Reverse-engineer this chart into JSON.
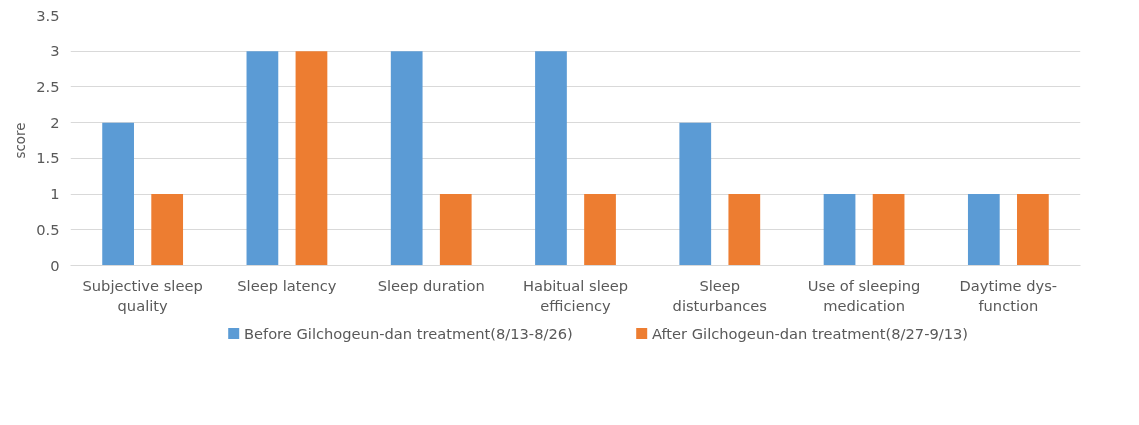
{
  "chart_data": {
    "type": "bar",
    "ylabel": "score",
    "categories": [
      "Subjective sleep\nquality",
      "Sleep latency",
      "Sleep duration",
      "Habitual sleep\nefficiency",
      "Sleep\ndisturbances",
      "Use of sleeping\nmedication",
      "Daytime dys-\nfunction"
    ],
    "series": [
      {
        "name": "Before Gilchogeun-dan treatment(8/13-8/26)",
        "color": "#5b9bd5",
        "values": [
          2,
          3,
          3,
          3,
          2,
          1,
          1
        ]
      },
      {
        "name": "After Gilchogeun-dan treatment(8/27-9/13)",
        "color": "#ed7d31",
        "values": [
          1,
          3,
          1,
          1,
          1,
          1,
          1
        ]
      }
    ],
    "ylim": [
      0,
      3.5
    ],
    "yticks": [
      0,
      0.5,
      1,
      1.5,
      2,
      2.5,
      3,
      3.5
    ],
    "grid": "y",
    "legend": "bottom"
  }
}
